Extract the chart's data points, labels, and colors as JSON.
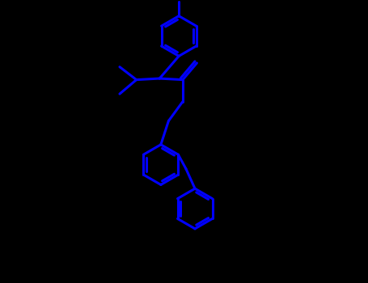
{
  "line_color": "#0000FF",
  "bg_color": "#000000",
  "line_width": 2.2,
  "figsize": [
    4.55,
    3.5
  ],
  "dpi": 100,
  "xlim": [
    0,
    9
  ],
  "ylim": [
    -9,
    2
  ]
}
